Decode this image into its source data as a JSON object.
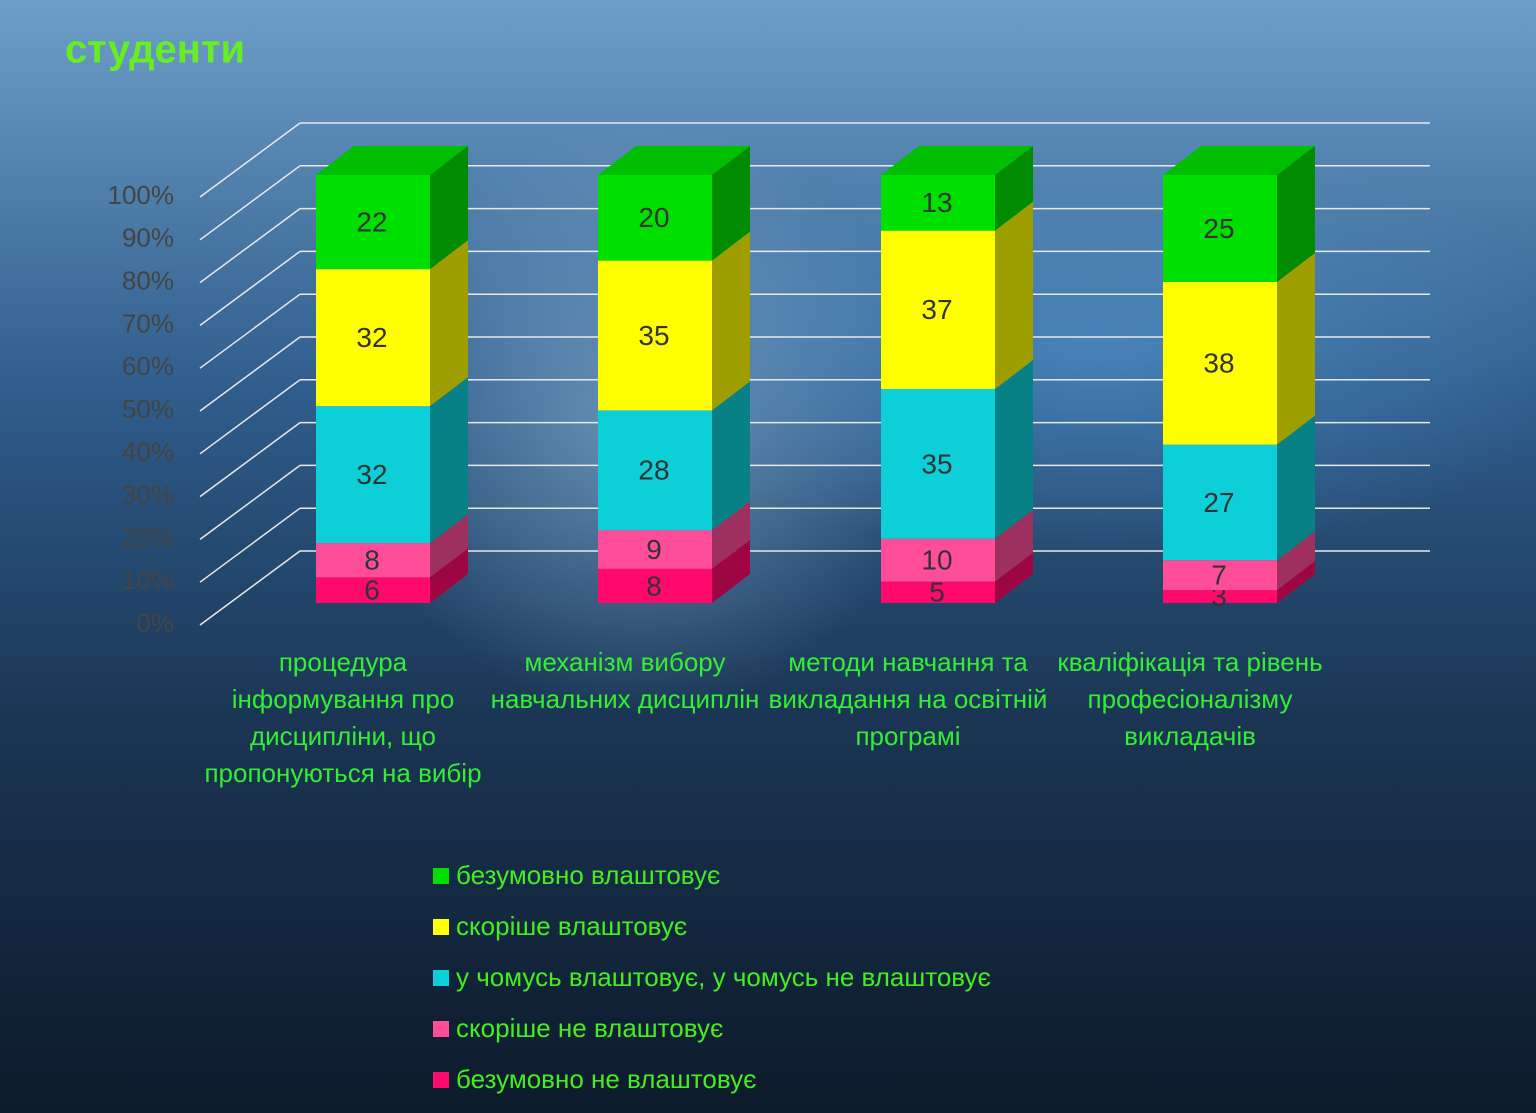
{
  "chart_data": {
    "type": "bar3d_stacked",
    "title": "студенти",
    "categories": [
      "процедура інформування про дисципліни, що пропонуються на вибір",
      "механізм вибору навчальних дисциплін",
      "методи навчання та викладання на освітній програмі",
      "кваліфікація та рівень професіоналізму викладачів"
    ],
    "series": [
      {
        "name": "безумовно не влаштовує",
        "color": "#ff0a6c",
        "values": [
          6,
          8,
          5,
          3
        ]
      },
      {
        "name": "скоріше не влаштовує",
        "color": "#ff4d9a",
        "values": [
          8,
          9,
          10,
          7
        ]
      },
      {
        "name": "у чомусь влаштовує, у чомусь не влаштовує",
        "color": "#0ccfd8",
        "values": [
          32,
          28,
          35,
          27
        ]
      },
      {
        "name": "скоріше влаштовує",
        "color": "#ffff00",
        "values": [
          32,
          35,
          37,
          38
        ]
      },
      {
        "name": "безумовно влаштовує",
        "color": "#00e000",
        "values": [
          22,
          20,
          13,
          25
        ]
      }
    ],
    "ylim": [
      0,
      100
    ],
    "yticks": [
      {
        "value": 0,
        "label": "0%"
      },
      {
        "value": 10,
        "label": "10%"
      },
      {
        "value": 20,
        "label": "20%"
      },
      {
        "value": 30,
        "label": "30%"
      },
      {
        "value": 40,
        "label": "40%"
      },
      {
        "value": 50,
        "label": "50%"
      },
      {
        "value": 60,
        "label": "60%"
      },
      {
        "value": 70,
        "label": "70%"
      },
      {
        "value": 80,
        "label": "80%"
      },
      {
        "value": 90,
        "label": "90%"
      },
      {
        "value": 100,
        "label": "100%"
      }
    ],
    "grid": true
  }
}
